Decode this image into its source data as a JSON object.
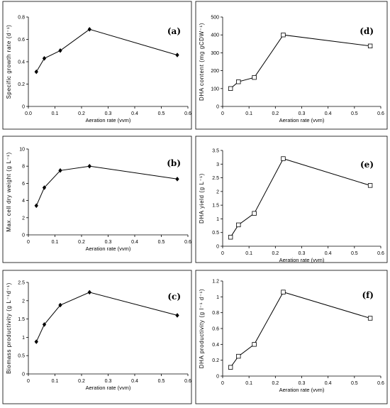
{
  "chart_data": [
    {
      "id": "a",
      "type": "line",
      "panel_label": "(a)",
      "ylabel": "Specific growth rate (d⁻¹)",
      "xlabel": "Aeration rate (vvm)",
      "marker": "diamond",
      "x": [
        0.03,
        0.06,
        0.12,
        0.23,
        0.56
      ],
      "y": [
        0.31,
        0.43,
        0.5,
        0.69,
        0.46
      ],
      "xlim": [
        0,
        0.6
      ],
      "xticks": [
        "0.0",
        "0.1",
        "0.2",
        "0.3",
        "0.4",
        "0.5",
        "0.6"
      ],
      "ylim": [
        0,
        0.8
      ],
      "yticks": [
        "0",
        "0.2",
        "0.4",
        "0.6",
        "0.8"
      ]
    },
    {
      "id": "b",
      "type": "line",
      "panel_label": "(b)",
      "ylabel": "Max. cell dry weight (g L⁻¹)",
      "xlabel": "Aeration rate (vvm)",
      "marker": "diamond",
      "x": [
        0.03,
        0.06,
        0.12,
        0.23,
        0.56
      ],
      "y": [
        3.4,
        5.5,
        7.5,
        8.0,
        6.5
      ],
      "xlim": [
        0,
        0.6
      ],
      "xticks": [
        "0",
        "0.1",
        "0.2",
        "0.3",
        "0.4",
        "0.5",
        "0.6"
      ],
      "ylim": [
        0,
        10
      ],
      "yticks": [
        "0",
        "2",
        "4",
        "6",
        "8",
        "10"
      ]
    },
    {
      "id": "c",
      "type": "line",
      "panel_label": "(c)",
      "ylabel": "Biomass productivity (g L⁻¹d⁻¹)",
      "xlabel": "Aeration rate (vvm)",
      "marker": "diamond",
      "x": [
        0.03,
        0.06,
        0.12,
        0.23,
        0.56
      ],
      "y": [
        0.88,
        1.35,
        1.88,
        2.23,
        1.6
      ],
      "xlim": [
        0,
        0.6
      ],
      "xticks": [
        "0",
        "0.1",
        "0.2",
        "0.3",
        "0.4",
        "0.5",
        "0.6"
      ],
      "ylim": [
        0,
        2.5
      ],
      "yticks": [
        "0",
        "0.5",
        "1",
        "1.5",
        "2",
        "2.5"
      ]
    },
    {
      "id": "d",
      "type": "line",
      "panel_label": "(d)",
      "ylabel": "DHA content (mg gCDW⁻¹)",
      "xlabel": "Aeration rate (vvm)",
      "marker": "square",
      "x": [
        0.03,
        0.06,
        0.12,
        0.23,
        0.56
      ],
      "y": [
        100,
        138,
        162,
        400,
        338
      ],
      "xlim": [
        0,
        0.6
      ],
      "xticks": [
        "0",
        "0.1",
        "0.2",
        "0.3",
        "0.4",
        "0.5",
        "0.6"
      ],
      "ylim": [
        0,
        500
      ],
      "yticks": [
        "0",
        "100",
        "200",
        "300",
        "400",
        "500"
      ]
    },
    {
      "id": "e",
      "type": "line",
      "panel_label": "(e)",
      "ylabel": "DHA yield (g L⁻¹)",
      "xlabel": "Aeration rate (vvm)",
      "marker": "square",
      "x": [
        0.03,
        0.06,
        0.12,
        0.23,
        0.56
      ],
      "y": [
        0.33,
        0.78,
        1.2,
        3.2,
        2.22
      ],
      "xlim": [
        0,
        0.6
      ],
      "xticks": [
        "0",
        "0.1",
        "0.2",
        "0.3",
        "0.4",
        "0.5",
        "0.6"
      ],
      "ylim": [
        0,
        3.5
      ],
      "yticks": [
        "0",
        "0.5",
        "1",
        "1.5",
        "2",
        "2.5",
        "3",
        "3.5"
      ]
    },
    {
      "id": "f",
      "type": "line",
      "panel_label": "(f)",
      "ylabel": "DHA productivity (g l⁻¹ d⁻¹)",
      "xlabel": "Aeration rate (vvm)",
      "marker": "square",
      "x": [
        0.03,
        0.06,
        0.12,
        0.23,
        0.56
      ],
      "y": [
        0.11,
        0.25,
        0.4,
        1.06,
        0.73
      ],
      "xlim": [
        0,
        0.6
      ],
      "xticks": [
        "0",
        "0.1",
        "0.2",
        "0.3",
        "0.4",
        "0.5",
        "0.6"
      ],
      "ylim": [
        0,
        1.2
      ],
      "yticks": [
        "0",
        "0.2",
        "0.4",
        "0.6",
        "0.8",
        "1",
        "1.2"
      ]
    }
  ]
}
